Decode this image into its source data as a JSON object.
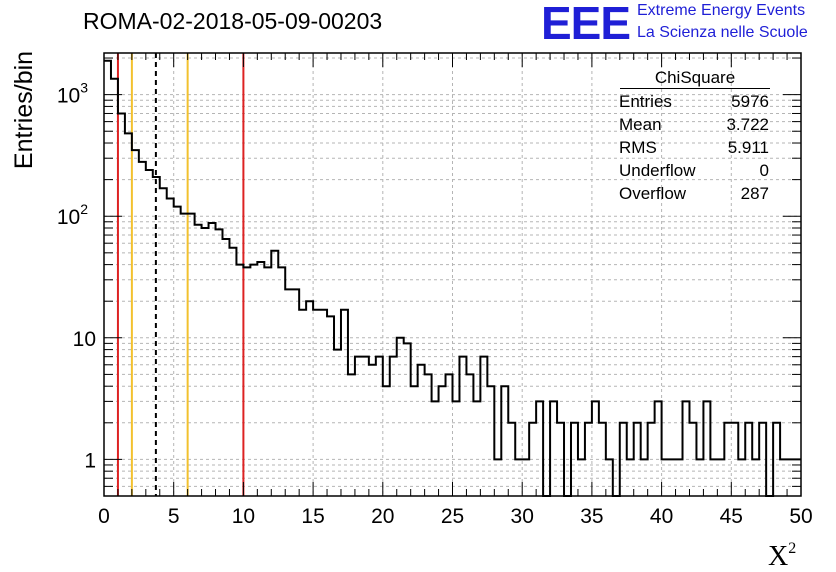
{
  "title": "ROMA-02-2018-05-09-00203",
  "logo": {
    "mark": "EEE",
    "line1": "Extreme Energy Events",
    "line2": "La Scienza nelle Scuole",
    "color": "#1f1fd6"
  },
  "stats": {
    "title": "ChiSquare",
    "rows": [
      {
        "label": "Entries",
        "value": "5976"
      },
      {
        "label": "Mean",
        "value": "3.722"
      },
      {
        "label": "RMS",
        "value": "5.911"
      },
      {
        "label": "Underflow",
        "value": "0"
      },
      {
        "label": "Overflow",
        "value": "287"
      }
    ]
  },
  "chart_data": {
    "type": "histogram",
    "xlabel": "X",
    "xlabel_superscript": "2",
    "ylabel": "Entries/bin",
    "xlim": [
      0,
      50
    ],
    "ylim": [
      0.5,
      2200
    ],
    "yscale": "log",
    "grid": true,
    "bin_width": 0.5,
    "x_ticks": [
      "0",
      "5",
      "10",
      "15",
      "20",
      "25",
      "30",
      "35",
      "40",
      "45",
      "50"
    ],
    "y_ticks": [
      {
        "base": "1",
        "exp": ""
      },
      {
        "base": "10",
        "exp": ""
      },
      {
        "base": "10",
        "exp": "2"
      },
      {
        "base": "10",
        "exp": "3"
      }
    ],
    "values": [
      1900,
      1350,
      700,
      480,
      350,
      280,
      240,
      210,
      170,
      140,
      120,
      105,
      105,
      85,
      80,
      88,
      78,
      65,
      55,
      40,
      38,
      40,
      42,
      38,
      52,
      38,
      25,
      25,
      17,
      20,
      17,
      17,
      15,
      8,
      17,
      5,
      7,
      7,
      6,
      7,
      4,
      7,
      10,
      9,
      4,
      6,
      5,
      3,
      4,
      5,
      3,
      7,
      5,
      3,
      7,
      4,
      1,
      4,
      2,
      1,
      1,
      2,
      3,
      0,
      3,
      2,
      0,
      2,
      1,
      2,
      3,
      2,
      1,
      0,
      2,
      1,
      2,
      1,
      2,
      3,
      1,
      1,
      1,
      3,
      2,
      1,
      3,
      1,
      1,
      2,
      2,
      1,
      2,
      1,
      2,
      0,
      2,
      1,
      1,
      1
    ],
    "markers": [
      {
        "x": 1,
        "color": "#dd2222",
        "style": "solid"
      },
      {
        "x": 2,
        "color": "#f2c12e",
        "style": "solid"
      },
      {
        "x": 3.722,
        "color": "#000000",
        "style": "dashed"
      },
      {
        "x": 6,
        "color": "#f2c12e",
        "style": "solid"
      },
      {
        "x": 10,
        "color": "#dd2222",
        "style": "solid"
      }
    ]
  }
}
